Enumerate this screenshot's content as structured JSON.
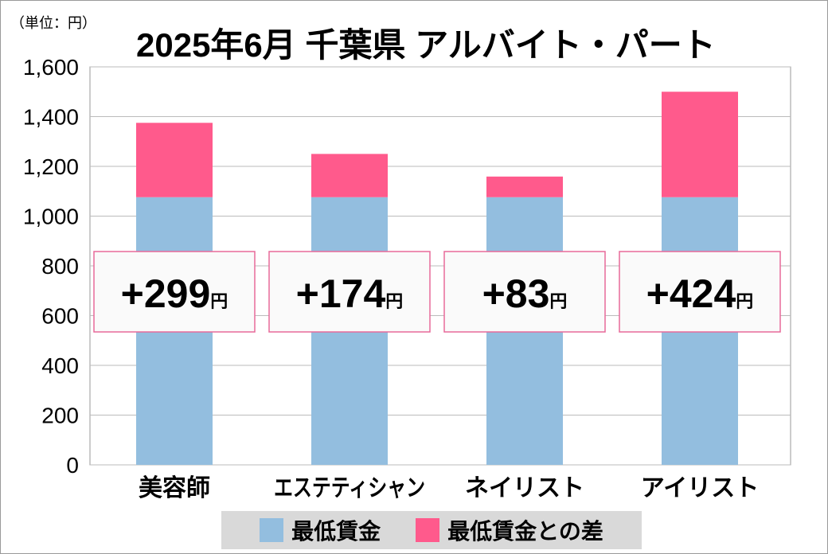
{
  "chart_data": {
    "type": "bar",
    "stacked": true,
    "title": "2025年6月 千葉県 アルバイト・パート",
    "unit_label": "（単位：円）",
    "categories": [
      "美容師",
      "エステティシャン",
      "ネイリスト",
      "アイリスト"
    ],
    "series": [
      {
        "name": "最低賃金",
        "color": "#93bedf",
        "values": [
          1076,
          1076,
          1076,
          1076
        ]
      },
      {
        "name": "最低賃金との差",
        "color": "#ff5a8c",
        "values": [
          299,
          174,
          83,
          424
        ]
      }
    ],
    "data_labels": [
      "+299",
      "+174",
      "+83",
      "+424"
    ],
    "data_label_unit": "円",
    "ylim": [
      0,
      1600
    ],
    "yticks": [
      0,
      200,
      400,
      600,
      800,
      1000,
      1200,
      1400,
      1600
    ],
    "ytick_labels": [
      "0",
      "200",
      "400",
      "600",
      "800",
      "1,000",
      "1,200",
      "1,400",
      "1,600"
    ],
    "grid": true,
    "legend_position": "bottom"
  }
}
